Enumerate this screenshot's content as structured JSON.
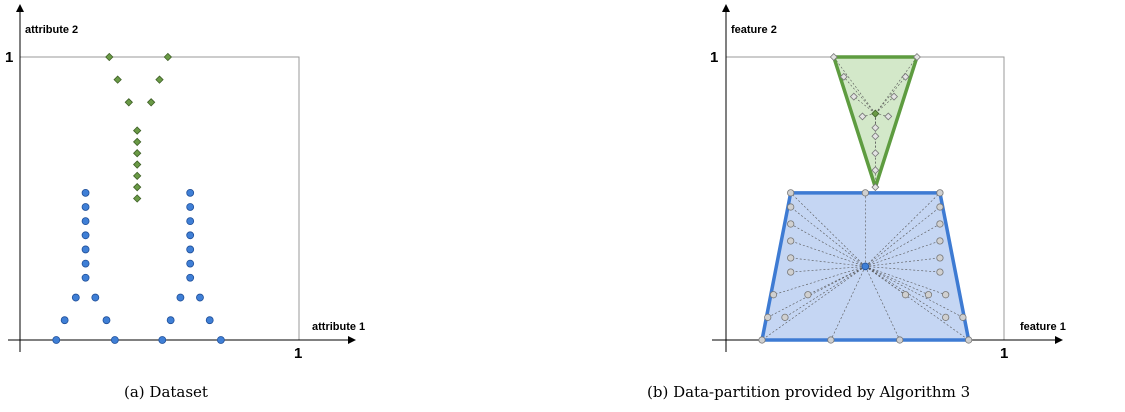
{
  "panels": [
    {
      "id": "a",
      "caption": "(a)  Dataset",
      "x_axis_label": "attribute 1",
      "y_axis_label": "attribute 2",
      "x_tick_label": "1",
      "y_tick_label": "1"
    },
    {
      "id": "b",
      "caption": "(b)  Data-partition provided by Algorithm 3",
      "x_axis_label": "feature 1",
      "y_axis_label": "feature 2",
      "x_tick_label": "1",
      "y_tick_label": "1"
    }
  ],
  "colors": {
    "blue_point": "#3f7fd6",
    "blue_point_stroke": "#1f4f99",
    "green_point": "#6a9a46",
    "green_point_stroke": "#3d5e25",
    "blue_region_fill": "#c5d6f3",
    "blue_region_stroke": "#3e7bd3",
    "green_region_fill": "#d3e8c9",
    "green_region_stroke": "#5e9c40",
    "hollow_point": "#d0d0d0"
  },
  "chart_data": {
    "type": "scatter",
    "dataset": {
      "series": [
        {
          "marker": "circle",
          "points": [
            [
              0.13,
              0.0
            ],
            [
              0.16,
              0.07
            ],
            [
              0.2,
              0.15
            ],
            [
              0.235,
              0.22
            ],
            [
              0.235,
              0.27
            ],
            [
              0.235,
              0.32
            ],
            [
              0.235,
              0.37
            ],
            [
              0.235,
              0.42
            ],
            [
              0.235,
              0.47
            ],
            [
              0.235,
              0.52
            ],
            [
              0.27,
              0.15
            ],
            [
              0.31,
              0.07
            ],
            [
              0.34,
              0.0
            ],
            [
              0.51,
              0.0
            ],
            [
              0.54,
              0.07
            ],
            [
              0.575,
              0.15
            ],
            [
              0.61,
              0.22
            ],
            [
              0.61,
              0.27
            ],
            [
              0.61,
              0.32
            ],
            [
              0.61,
              0.37
            ],
            [
              0.61,
              0.42
            ],
            [
              0.61,
              0.47
            ],
            [
              0.61,
              0.52
            ],
            [
              0.645,
              0.15
            ],
            [
              0.68,
              0.07
            ],
            [
              0.72,
              0.0
            ]
          ]
        },
        {
          "marker": "diamond",
          "points": [
            [
              0.42,
              0.5
            ],
            [
              0.42,
              0.54
            ],
            [
              0.42,
              0.58
            ],
            [
              0.42,
              0.62
            ],
            [
              0.42,
              0.66
            ],
            [
              0.42,
              0.7
            ],
            [
              0.42,
              0.74
            ],
            [
              0.39,
              0.84
            ],
            [
              0.35,
              0.92
            ],
            [
              0.32,
              1.0
            ],
            [
              0.47,
              0.84
            ],
            [
              0.5,
              0.92
            ],
            [
              0.53,
              1.0
            ]
          ]
        }
      ]
    },
    "partition": {
      "regions": [
        {
          "name": "",
          "polygon": [
            [
              0.0,
              0.0
            ],
            [
              0.72,
              0.0
            ],
            [
              0.62,
              0.52
            ],
            [
              0.1,
              0.52
            ]
          ],
          "center": [
            0.36,
            0.26
          ],
          "boundary_points": [
            [
              0.0,
              0.0
            ],
            [
              0.24,
              0.0
            ],
            [
              0.48,
              0.0
            ],
            [
              0.72,
              0.0
            ],
            [
              0.1,
              0.52
            ],
            [
              0.36,
              0.52
            ],
            [
              0.62,
              0.52
            ],
            [
              0.1,
              0.47
            ],
            [
              0.1,
              0.41
            ],
            [
              0.1,
              0.35
            ],
            [
              0.1,
              0.29
            ],
            [
              0.1,
              0.24
            ],
            [
              0.62,
              0.47
            ],
            [
              0.62,
              0.41
            ],
            [
              0.62,
              0.35
            ],
            [
              0.62,
              0.29
            ],
            [
              0.62,
              0.24
            ],
            [
              0.04,
              0.16
            ],
            [
              0.02,
              0.08
            ],
            [
              0.08,
              0.08
            ],
            [
              0.16,
              0.16
            ],
            [
              0.5,
              0.16
            ],
            [
              0.58,
              0.16
            ],
            [
              0.64,
              0.08
            ],
            [
              0.7,
              0.08
            ],
            [
              0.64,
              0.16
            ]
          ]
        },
        {
          "name": "",
          "polygon": [
            [
              0.25,
              1.0
            ],
            [
              0.54,
              1.0
            ],
            [
              0.395,
              0.54
            ]
          ],
          "center": [
            0.395,
            0.8
          ],
          "boundary_points": [
            [
              0.25,
              1.0
            ],
            [
              0.54,
              1.0
            ],
            [
              0.395,
              0.54
            ],
            [
              0.285,
              0.93
            ],
            [
              0.32,
              0.86
            ],
            [
              0.35,
              0.79
            ],
            [
              0.5,
              0.93
            ],
            [
              0.46,
              0.86
            ],
            [
              0.44,
              0.79
            ],
            [
              0.395,
              0.6
            ],
            [
              0.395,
              0.66
            ],
            [
              0.395,
              0.72
            ],
            [
              0.395,
              0.75
            ]
          ]
        }
      ]
    }
  }
}
